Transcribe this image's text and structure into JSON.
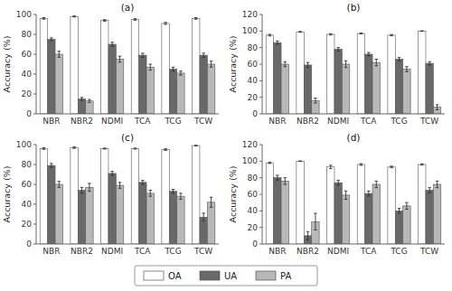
{
  "chart_data": [
    {
      "type": "bar",
      "title": "(a)",
      "y_label": "Accuracy (%)",
      "categories": [
        "NBR",
        "NBR2",
        "NDMI",
        "TCA",
        "TCG",
        "TCW"
      ],
      "series": [
        {
          "name": "OA",
          "color": "#ffffff",
          "values": [
            96,
            98,
            94,
            95,
            91,
            96
          ],
          "errors": [
            0.8,
            0.5,
            0.8,
            0.8,
            1.0,
            0.8
          ]
        },
        {
          "name": "UA",
          "color": "#696969",
          "values": [
            75,
            15,
            70,
            59,
            45,
            59
          ],
          "errors": [
            1.5,
            1.5,
            2.0,
            2.0,
            2.0,
            2.0
          ]
        },
        {
          "name": "PA",
          "color": "#b8b8b8",
          "values": [
            60,
            13,
            55,
            47,
            41,
            50
          ],
          "errors": [
            3.0,
            1.5,
            3.0,
            3.0,
            2.0,
            3.0
          ]
        }
      ],
      "ylim": [
        0,
        100
      ],
      "yticks": [
        0,
        20,
        40,
        60,
        80,
        100
      ],
      "grid": false,
      "legend": "bottom"
    },
    {
      "type": "bar",
      "title": "(b)",
      "y_label": "Accuracy (%)",
      "categories": [
        "NBR",
        "NBR2",
        "NDMI",
        "TCA",
        "TCG",
        "TCW"
      ],
      "series": [
        {
          "name": "OA",
          "color": "#ffffff",
          "values": [
            95,
            99,
            96,
            97,
            95,
            100
          ],
          "errors": [
            1.0,
            0.5,
            0.8,
            0.5,
            0.8,
            0.3
          ]
        },
        {
          "name": "UA",
          "color": "#696969",
          "values": [
            86,
            59,
            78,
            72,
            66,
            61
          ],
          "errors": [
            2.0,
            3.0,
            2.0,
            2.0,
            2.0,
            2.0
          ]
        },
        {
          "name": "PA",
          "color": "#b8b8b8",
          "values": [
            60,
            16,
            60,
            62,
            54,
            8
          ],
          "errors": [
            3.0,
            3.0,
            4.0,
            4.0,
            3.0,
            3.0
          ]
        }
      ],
      "ylim": [
        0,
        120
      ],
      "yticks": [
        0,
        20,
        40,
        60,
        80,
        100,
        120
      ],
      "grid": false,
      "legend": "bottom"
    },
    {
      "type": "bar",
      "title": "(c)",
      "y_label": "Accuracy (%)",
      "categories": [
        "NBR",
        "NBR2",
        "NDMI",
        "TCA",
        "TCG",
        "TCW"
      ],
      "series": [
        {
          "name": "OA",
          "color": "#ffffff",
          "values": [
            96,
            97,
            96,
            96,
            95,
            99
          ],
          "errors": [
            0.8,
            0.8,
            0.5,
            0.5,
            0.8,
            0.3
          ]
        },
        {
          "name": "UA",
          "color": "#696969",
          "values": [
            79,
            54,
            71,
            62,
            53,
            27
          ],
          "errors": [
            2.0,
            3.0,
            2.0,
            2.0,
            2.0,
            4.0
          ]
        },
        {
          "name": "PA",
          "color": "#b8b8b8",
          "values": [
            60,
            57,
            59,
            51,
            48,
            42
          ],
          "errors": [
            3.0,
            4.0,
            3.0,
            3.0,
            3.0,
            5.0
          ]
        }
      ],
      "ylim": [
        0,
        100
      ],
      "yticks": [
        0,
        20,
        40,
        60,
        80,
        100
      ],
      "grid": false,
      "legend": "bottom"
    },
    {
      "type": "bar",
      "title": "(d)",
      "y_label": "Accuracy (%)",
      "categories": [
        "NBR",
        "NBR2",
        "NDMI",
        "TCA",
        "TCG",
        "TCW"
      ],
      "series": [
        {
          "name": "OA",
          "color": "#ffffff",
          "values": [
            98,
            100,
            93,
            96,
            93,
            96
          ],
          "errors": [
            0.8,
            0.3,
            2.0,
            1.0,
            1.0,
            0.8
          ]
        },
        {
          "name": "UA",
          "color": "#696969",
          "values": [
            80,
            10,
            74,
            61,
            40,
            65
          ],
          "errors": [
            3.0,
            5.0,
            3.0,
            3.0,
            3.0,
            3.0
          ]
        },
        {
          "name": "PA",
          "color": "#b8b8b8",
          "values": [
            76,
            27,
            59,
            72,
            46,
            72
          ],
          "errors": [
            4.0,
            10.0,
            5.0,
            4.0,
            4.0,
            4.0
          ]
        }
      ],
      "ylim": [
        0,
        120
      ],
      "yticks": [
        0,
        20,
        40,
        60,
        80,
        100,
        120
      ],
      "grid": false,
      "legend": "bottom"
    }
  ]
}
